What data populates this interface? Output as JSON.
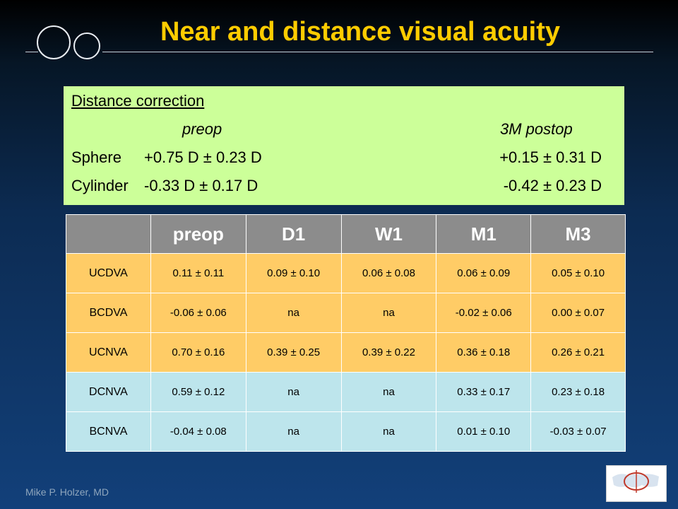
{
  "title": "Near and distance visual acuity",
  "correction": {
    "heading": "Distance correction",
    "preop_label": "preop",
    "postop_label": "3M postop",
    "sphere": {
      "label": "Sphere",
      "preop": "+0.75 D ± 0.23 D",
      "postop": "+0.15 ± 0.31 D"
    },
    "cylinder": {
      "label": "Cylinder",
      "preop": "-0.33 D ± 0.17 D",
      "postop": "-0.42 ± 0.23 D"
    }
  },
  "table": {
    "headers": [
      "",
      "preop",
      "D1",
      "W1",
      "M1",
      "M3"
    ],
    "rows": [
      [
        "UCDVA",
        "0.11 ± 0.11",
        "0.09 ± 0.10",
        "0.06 ± 0.08",
        "0.06 ± 0.09",
        "0.05 ± 0.10"
      ],
      [
        "BCDVA",
        "-0.06 ± 0.06",
        "na",
        "na",
        "-0.02 ± 0.06",
        "0.00 ± 0.07"
      ],
      [
        "UCNVA",
        "0.70 ± 0.16",
        "0.39 ± 0.25",
        "0.39 ± 0.22",
        "0.36 ± 0.18",
        "0.26 ± 0.21"
      ],
      [
        "DCNVA",
        "0.59 ± 0.12",
        "na",
        "na",
        "0.33 ± 0.17",
        "0.23 ± 0.18"
      ],
      [
        "BCNVA",
        "-0.04 ± 0.08",
        "na",
        "na",
        "0.01 ± 0.10",
        "-0.03 ± 0.07"
      ]
    ],
    "colors": {
      "header": "#8c8c8c",
      "distance_rows": "#ffcc66",
      "near_rows": "#bde5ec"
    }
  },
  "footer": "Mike P. Holzer, MD",
  "logo": {
    "icon": "institute-logo"
  }
}
